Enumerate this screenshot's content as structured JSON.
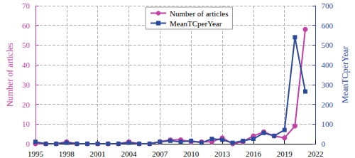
{
  "chart_data": {
    "type": "line",
    "x": [
      1995,
      1996,
      1997,
      1998,
      1999,
      2000,
      2001,
      2002,
      2003,
      2004,
      2005,
      2006,
      2007,
      2008,
      2009,
      2010,
      2011,
      2012,
      2013,
      2014,
      2015,
      2016,
      2017,
      2018,
      2019,
      2020,
      2021
    ],
    "series": [
      {
        "name": "Number of articles",
        "color": "#c23fa3",
        "marker": "circle",
        "values": [
          0,
          0,
          0,
          1,
          0,
          0,
          0,
          0,
          0,
          1,
          0,
          0,
          1,
          2,
          2,
          1,
          1,
          1,
          3,
          0,
          1,
          4,
          6,
          4,
          3,
          9,
          58
        ]
      },
      {
        "name": "MeanTCperYear",
        "color": "#2c4a9c",
        "marker": "square",
        "axis": "y2",
        "values": [
          10,
          0,
          0,
          5,
          0,
          0,
          0,
          0,
          0,
          5,
          0,
          0,
          10,
          15,
          10,
          15,
          5,
          25,
          20,
          5,
          15,
          25,
          55,
          40,
          70,
          540,
          265
        ]
      }
    ],
    "ylabel": "Number of articles",
    "y2label": "MeanTCperYear",
    "xlim": [
      1995,
      2022
    ],
    "xticks": [
      1995,
      1998,
      2001,
      2004,
      2007,
      2010,
      2013,
      2016,
      2019,
      2022
    ],
    "ylim": [
      0,
      70
    ],
    "yticks": [
      0,
      10,
      20,
      30,
      40,
      50,
      60,
      70
    ],
    "y2lim": [
      0,
      700
    ],
    "y2ticks": [
      0,
      100,
      200,
      300,
      400,
      500,
      600,
      700
    ],
    "grid": true,
    "legend": "upper center"
  }
}
